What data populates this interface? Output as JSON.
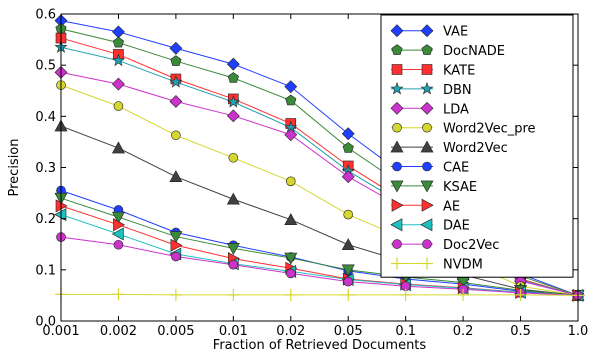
{
  "chart_data": {
    "type": "line",
    "xlabel": "Fraction of Retrieved Documents",
    "ylabel": "Precision",
    "x": [
      "0.001",
      "0.002",
      "0.005",
      "0.01",
      "0.02",
      "0.05",
      "0.1",
      "0.2",
      "0.5",
      "1.0"
    ],
    "yticks": [
      "0.0",
      "0.1",
      "0.2",
      "0.3",
      "0.4",
      "0.5",
      "0.6"
    ],
    "ylim": [
      0,
      0.6
    ],
    "grid": false,
    "legend_position": "right",
    "series": [
      {
        "name": "VAE",
        "color": "#1f3fff",
        "marker": "diamond",
        "values": [
          0.587,
          0.565,
          0.533,
          0.502,
          0.458,
          0.366,
          0.283,
          0.2,
          0.092,
          0.05
        ]
      },
      {
        "name": "DocNADE",
        "color": "#3a8a3a",
        "marker": "pentagon",
        "values": [
          0.571,
          0.544,
          0.508,
          0.475,
          0.431,
          0.338,
          0.262,
          0.185,
          0.088,
          0.05
        ]
      },
      {
        "name": "KATE",
        "color": "#ff3030",
        "marker": "square",
        "values": [
          0.553,
          0.521,
          0.473,
          0.434,
          0.386,
          0.303,
          0.233,
          0.164,
          0.082,
          0.05
        ]
      },
      {
        "name": "DBN",
        "color": "#20a0b0",
        "marker": "star",
        "values": [
          0.535,
          0.509,
          0.467,
          0.428,
          0.378,
          0.293,
          0.226,
          0.158,
          0.08,
          0.05
        ]
      },
      {
        "name": "LDA",
        "color": "#cc33cc",
        "marker": "diamond",
        "values": [
          0.486,
          0.463,
          0.429,
          0.401,
          0.364,
          0.282,
          0.218,
          0.152,
          0.078,
          0.05
        ]
      },
      {
        "name": "Word2Vec_pre",
        "color": "#d6d630",
        "marker": "circle",
        "values": [
          0.461,
          0.42,
          0.363,
          0.319,
          0.273,
          0.208,
          0.16,
          0.118,
          0.068,
          0.05
        ]
      },
      {
        "name": "Word2Vec",
        "color": "#404040",
        "marker": "triangle-up",
        "values": [
          0.381,
          0.338,
          0.282,
          0.238,
          0.198,
          0.149,
          0.115,
          0.09,
          0.062,
          0.05
        ]
      },
      {
        "name": "CAE",
        "color": "#1f3fff",
        "marker": "circle",
        "values": [
          0.255,
          0.217,
          0.173,
          0.148,
          0.125,
          0.098,
          0.082,
          0.072,
          0.058,
          0.05
        ]
      },
      {
        "name": "KSAE",
        "color": "#3a8a3a",
        "marker": "triangle-down",
        "values": [
          0.24,
          0.203,
          0.165,
          0.142,
          0.123,
          0.1,
          0.086,
          0.075,
          0.06,
          0.05
        ]
      },
      {
        "name": "AE",
        "color": "#ff3030",
        "marker": "triangle-right",
        "values": [
          0.225,
          0.188,
          0.148,
          0.122,
          0.103,
          0.082,
          0.072,
          0.065,
          0.056,
          0.05
        ]
      },
      {
        "name": "DAE",
        "color": "#20c0c0",
        "marker": "triangle-left",
        "values": [
          0.208,
          0.17,
          0.131,
          0.112,
          0.097,
          0.081,
          0.071,
          0.064,
          0.056,
          0.05
        ]
      },
      {
        "name": "Doc2Vec",
        "color": "#cc33cc",
        "marker": "circle",
        "values": [
          0.164,
          0.149,
          0.126,
          0.11,
          0.093,
          0.077,
          0.068,
          0.062,
          0.055,
          0.05
        ]
      },
      {
        "name": "NVDM",
        "color": "#d6d630",
        "marker": "plus",
        "values": [
          0.052,
          0.052,
          0.051,
          0.051,
          0.051,
          0.051,
          0.051,
          0.051,
          0.051,
          0.05
        ]
      }
    ]
  }
}
